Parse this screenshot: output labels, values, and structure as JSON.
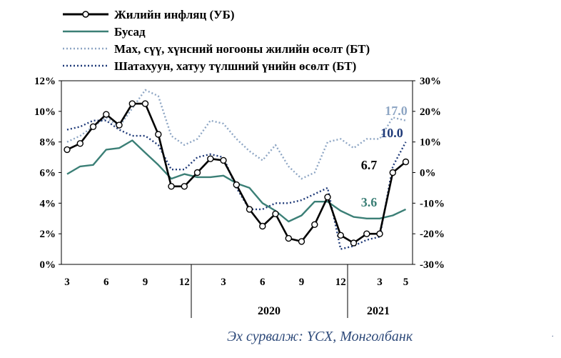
{
  "chart_data": {
    "type": "line",
    "x_ticks": [
      "3",
      "6",
      "9",
      "12",
      "3",
      "6",
      "9",
      "12",
      "3",
      "5"
    ],
    "years": [
      "2020",
      "2021"
    ],
    "y_left": {
      "min": 0,
      "max": 12,
      "ticks": [
        "0%",
        "2%",
        "4%",
        "6%",
        "8%",
        "10%",
        "12%"
      ]
    },
    "y_right": {
      "min": -30,
      "max": 30,
      "ticks": [
        "-30%",
        "-20%",
        "-10%",
        "0%",
        "10%",
        "20%",
        "30%"
      ]
    },
    "x_start": 3,
    "series": [
      {
        "name": "Жилийн инфляц (УБ)",
        "axis": "left",
        "style": "black-markers",
        "color": "#000000",
        "values": [
          7.5,
          7.9,
          9.0,
          9.8,
          9.1,
          10.5,
          10.5,
          8.5,
          5.1,
          5.1,
          6.0,
          6.9,
          6.8,
          5.2,
          3.6,
          2.5,
          3.3,
          1.7,
          1.5,
          2.6,
          4.4,
          1.9,
          1.4,
          2.0,
          2.0,
          6.0,
          6.7
        ]
      },
      {
        "name": "Бусад",
        "axis": "left",
        "style": "solid",
        "color": "#3b7f76",
        "values": [
          5.9,
          6.4,
          6.5,
          7.5,
          7.6,
          8.1,
          7.3,
          6.5,
          5.6,
          5.9,
          5.7,
          5.7,
          5.8,
          5.3,
          5.0,
          4.0,
          3.5,
          2.8,
          3.2,
          4.1,
          4.1,
          3.5,
          3.1,
          3.0,
          3.0,
          3.2,
          3.6
        ]
      },
      {
        "name": "Мах, сүү, хүнсний ногооны жилийн өсөлт (БТ)",
        "axis": "right",
        "style": "dotted-light",
        "color": "#8ea6c4",
        "values": [
          10,
          12,
          15,
          18,
          15,
          21,
          27,
          25,
          12,
          9,
          11,
          17,
          16,
          11,
          7,
          4,
          9,
          2,
          -2,
          0,
          10,
          11,
          8,
          11,
          11,
          18,
          17.0
        ]
      },
      {
        "name": "Шатахуун, хатуу түлшний үнийн өсөлт (БТ)",
        "axis": "right",
        "style": "dotted-dark",
        "color": "#1f3a78",
        "values": [
          14,
          15,
          17,
          17,
          14,
          12,
          12,
          9,
          1,
          1,
          5,
          6,
          5,
          -5,
          -12,
          -12,
          -10,
          -10,
          -9,
          -7,
          -5,
          -25,
          -24,
          -22,
          -21,
          2,
          10.0
        ]
      }
    ],
    "end_labels": [
      {
        "text": "17.0",
        "color": "#8ea6c4"
      },
      {
        "text": "10.0",
        "color": "#1f3a78"
      },
      {
        "text": "6.7",
        "color": "#000000"
      },
      {
        "text": "3.6",
        "color": "#3b7f76"
      }
    ]
  },
  "source": "Эх сурвалж: ҮСХ, Монголбанк",
  "corner_mark": "."
}
